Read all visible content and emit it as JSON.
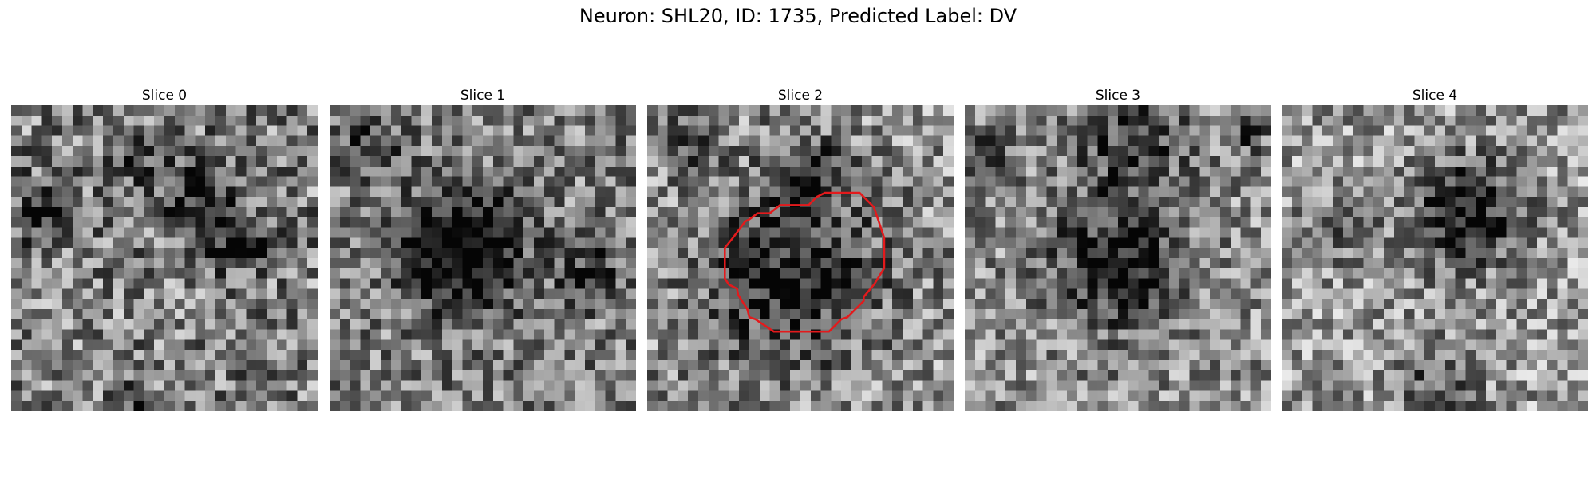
{
  "figure": {
    "title": "Neuron: SHL20, ID: 1735, Predicted Label: DV"
  },
  "slices": [
    {
      "title": "Slice 0",
      "blobs": [
        [
          0.12,
          0.35,
          0.07,
          0.45
        ],
        [
          0.62,
          0.28,
          0.09,
          0.4
        ],
        [
          0.73,
          0.45,
          0.07,
          0.4
        ],
        [
          0.4,
          0.18,
          0.05,
          0.3
        ],
        [
          0.4,
          0.97,
          0.04,
          0.25
        ]
      ],
      "bias": 0.5,
      "noise": 0.36,
      "seed": 11
    },
    {
      "title": "Slice 1",
      "blobs": [
        [
          0.44,
          0.48,
          0.13,
          0.65
        ],
        [
          0.14,
          0.14,
          0.07,
          0.3
        ],
        [
          0.85,
          0.55,
          0.07,
          0.3
        ]
      ],
      "bias": 0.5,
      "noise": 0.32,
      "seed": 23
    },
    {
      "title": "Slice 2",
      "blobs": [
        [
          0.47,
          0.55,
          0.2,
          0.45
        ],
        [
          0.52,
          0.22,
          0.08,
          0.3
        ],
        [
          0.15,
          0.12,
          0.07,
          0.2
        ]
      ],
      "bias": 0.56,
      "noise": 0.34,
      "seed": 37,
      "outlined": true
    },
    {
      "title": "Slice 3",
      "blobs": [
        [
          0.5,
          0.52,
          0.14,
          0.5
        ],
        [
          0.55,
          0.12,
          0.12,
          0.35
        ],
        [
          0.05,
          0.18,
          0.06,
          0.4
        ],
        [
          0.92,
          0.08,
          0.05,
          0.3
        ]
      ],
      "bias": 0.55,
      "noise": 0.32,
      "seed": 51
    },
    {
      "title": "Slice 4",
      "blobs": [
        [
          0.6,
          0.35,
          0.12,
          0.55
        ],
        [
          0.18,
          0.4,
          0.08,
          0.2
        ],
        [
          0.5,
          0.9,
          0.1,
          0.25
        ]
      ],
      "bias": 0.6,
      "noise": 0.32,
      "seed": 67
    }
  ],
  "outline_color": "#e31a1c",
  "colormap": "gray"
}
